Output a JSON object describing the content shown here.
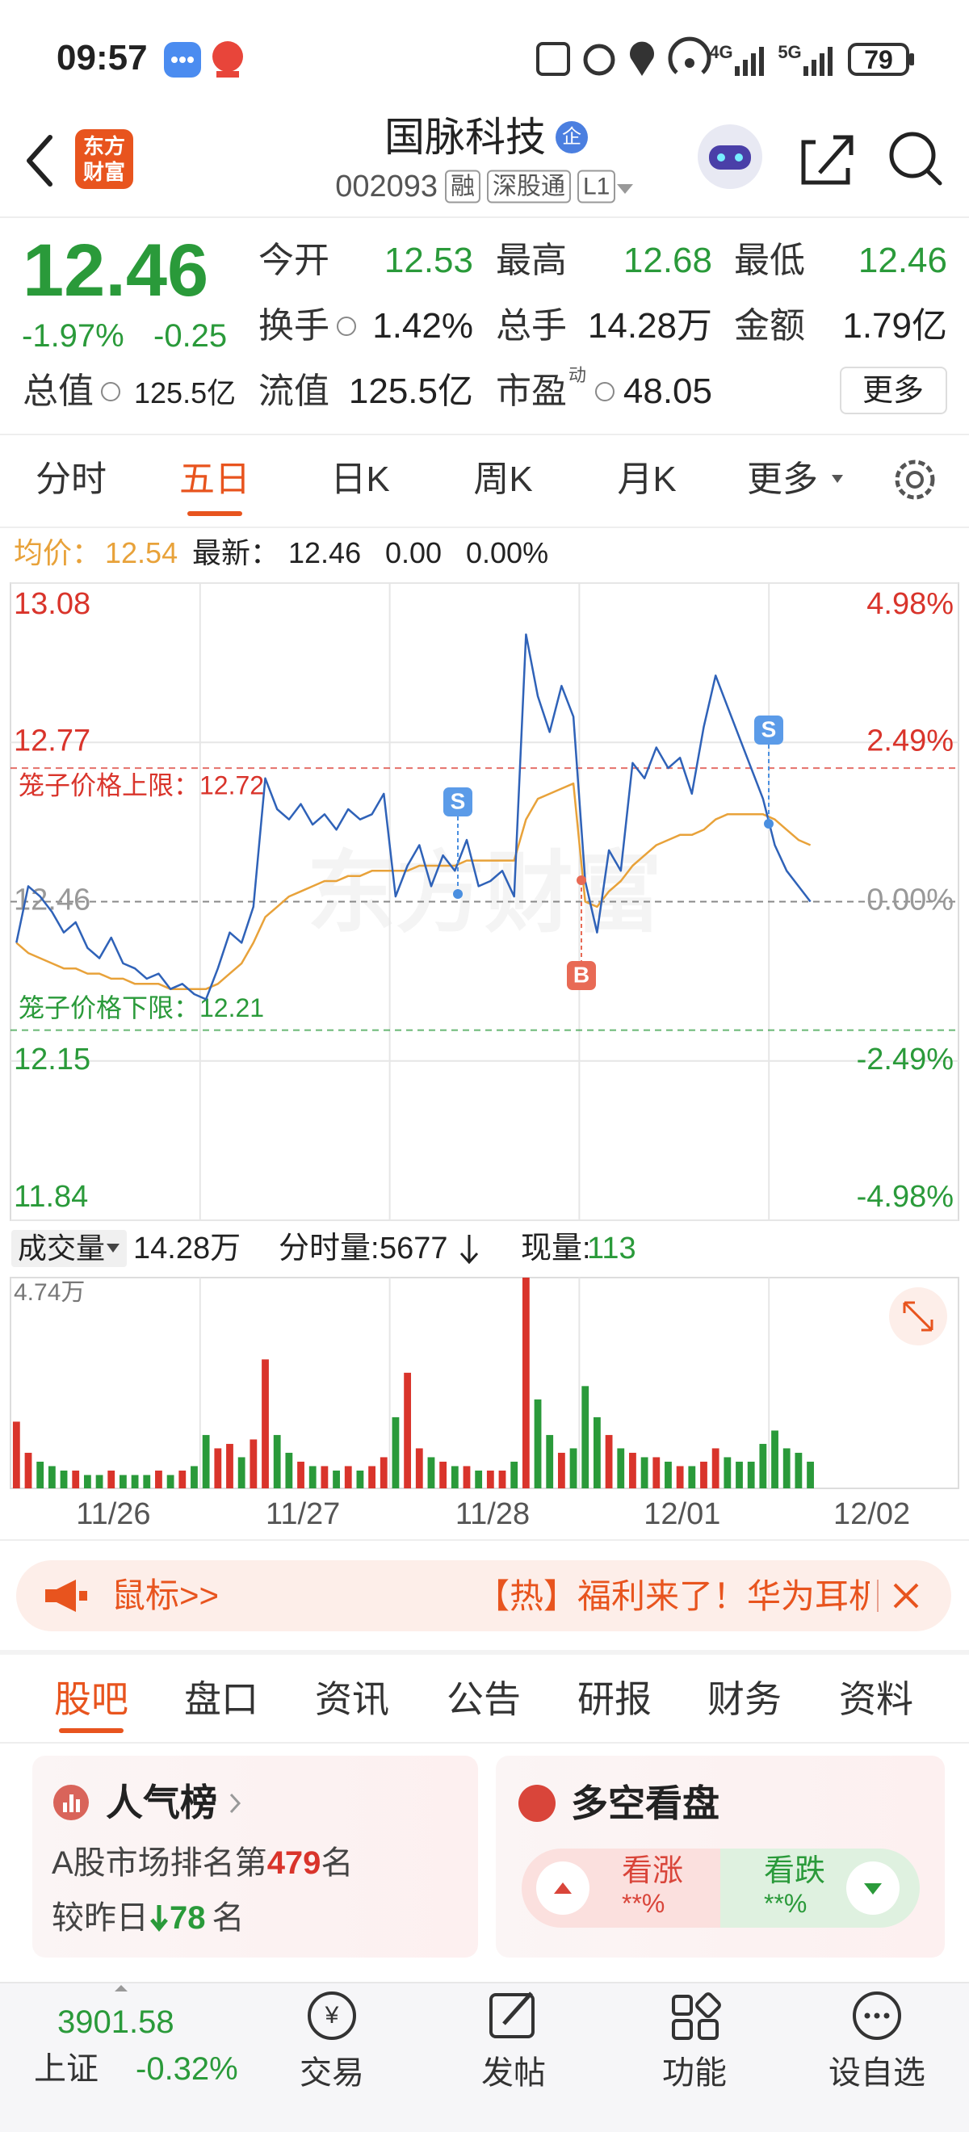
{
  "status_bar": {
    "time": "09:57",
    "battery": "79"
  },
  "header": {
    "logo": [
      "东方",
      "财富"
    ],
    "title": "国脉科技",
    "title_badge": "企",
    "code": "002093",
    "badges": [
      "融",
      "深股通",
      "L1"
    ]
  },
  "quote": {
    "price": "12.46",
    "change_pct": "-1.97%",
    "change": "-0.25",
    "total_value": {
      "label": "总值",
      "value": "125.5亿",
      "info_icon": true
    },
    "fields": [
      {
        "label": "今开",
        "value": "12.53",
        "color": "#2a9a3a"
      },
      {
        "label": "最高",
        "value": "12.68",
        "color": "#2a9a3a"
      },
      {
        "label": "最低",
        "value": "12.46",
        "color": "#2a9a3a"
      },
      {
        "label": "换手",
        "value": "1.42%",
        "info_icon": true
      },
      {
        "label": "总手",
        "value": "14.28万"
      },
      {
        "label": "金额",
        "value": "1.79亿"
      },
      {
        "label": "流值",
        "value": "125.5亿"
      },
      {
        "label": "市盈",
        "note": "动",
        "value": "48.05",
        "info_icon": true
      }
    ],
    "more": "更多"
  },
  "tabs": {
    "items": [
      "分时",
      "五日",
      "日K",
      "周K",
      "月K",
      "更多"
    ],
    "active": 1
  },
  "chart_info": {
    "avg_label": "均价：",
    "avg": "12.54",
    "latest_label": "最新：",
    "latest": "12.46",
    "change": "0.00",
    "change_pct": "0.00%"
  },
  "trade_marks": [
    "S",
    "B",
    "S"
  ],
  "chart_data": {
    "type": "line",
    "watermark": "东方财富",
    "x_labels": [
      "11/26",
      "11/27",
      "11/28",
      "12/01",
      "12/02"
    ],
    "ylim": [
      11.84,
      13.08
    ],
    "yticks": [
      13.08,
      12.77,
      12.46,
      12.15,
      11.84
    ],
    "y2lim": [
      -4.98,
      4.98
    ],
    "y2ticks": [
      {
        "value": 4.98,
        "label": "4.98%"
      },
      {
        "value": 2.49,
        "label": "2.49%"
      },
      {
        "value": 0,
        "label": "0.00%"
      },
      {
        "value": -2.49,
        "label": "-2.49%"
      },
      {
        "value": -4.98,
        "label": "-4.98%"
      }
    ],
    "up_color": "#d9342b",
    "down_color": "#2a9a3a",
    "reference_lines": [
      {
        "label": "笼子价格上限：12.72",
        "value": 12.72,
        "color": "#d9342b"
      },
      {
        "label": "笼子价格下限：12.21",
        "value": 12.21,
        "color": "#2a9a3a"
      }
    ],
    "series": [
      {
        "color": "#2f62b8",
        "values": [
          [
            12.38,
            12.49,
            12.47,
            12.44,
            12.4,
            12.42,
            12.37,
            12.35,
            12.39,
            12.34,
            12.33,
            12.31,
            12.32,
            12.29,
            12.3,
            12.28
          ],
          [
            12.27,
            12.33,
            12.4,
            12.38,
            12.45,
            12.7,
            12.64,
            12.62,
            12.65,
            12.61,
            12.63,
            12.6,
            12.64,
            12.62,
            12.63,
            12.67
          ],
          [
            12.47,
            12.53,
            12.57,
            12.49,
            12.55,
            12.52,
            12.58,
            12.49,
            12.5,
            12.52,
            12.47,
            12.98,
            12.86,
            12.79,
            12.88,
            12.82
          ],
          [
            12.5,
            12.4,
            12.56,
            12.52,
            12.73,
            12.7,
            12.76,
            12.72,
            12.74,
            12.67,
            12.8,
            12.9,
            12.84,
            12.78,
            12.72,
            12.66
          ],
          [
            12.57,
            12.52,
            12.49,
            12.46
          ]
        ]
      },
      {
        "color": "#e8a23a",
        "values": [
          [
            12.38,
            12.36,
            12.35,
            12.34,
            12.33,
            12.33,
            12.32,
            12.32,
            12.31,
            12.31,
            12.3,
            12.3,
            12.3,
            12.29,
            12.29,
            12.29
          ],
          [
            12.29,
            12.3,
            12.32,
            12.34,
            12.38,
            12.43,
            12.45,
            12.47,
            12.48,
            12.49,
            12.5,
            12.5,
            12.51,
            12.51,
            12.52,
            12.52
          ],
          [
            12.52,
            12.52,
            12.53,
            12.53,
            12.53,
            12.53,
            12.54,
            12.54,
            12.54,
            12.54,
            12.54,
            12.62,
            12.66,
            12.67,
            12.68,
            12.69
          ],
          [
            12.46,
            12.45,
            12.48,
            12.5,
            12.53,
            12.55,
            12.57,
            12.58,
            12.59,
            12.59,
            12.6,
            12.62,
            12.63,
            12.63,
            12.63,
            12.63
          ],
          [
            12.62,
            12.6,
            12.58,
            12.57
          ]
        ]
      }
    ],
    "volume": {
      "ylim": [
        0,
        4.74
      ],
      "yticks": [
        {
          "value": 4.74,
          "label": "4.74万"
        }
      ],
      "values": [
        [
          1.5,
          0.8,
          0.6,
          0.5,
          0.4,
          0.4,
          0.3,
          0.3,
          0.4,
          0.3,
          0.3,
          0.3,
          0.4,
          0.3,
          0.4,
          0.5
        ],
        [
          1.2,
          0.9,
          1.0,
          0.7,
          1.1,
          2.9,
          1.2,
          0.8,
          0.6,
          0.5,
          0.5,
          0.4,
          0.5,
          0.4,
          0.5,
          0.7
        ],
        [
          1.6,
          2.6,
          0.9,
          0.7,
          0.6,
          0.5,
          0.5,
          0.4,
          0.4,
          0.4,
          0.6,
          4.74,
          2.0,
          1.2,
          0.8,
          0.9
        ],
        [
          2.3,
          1.6,
          1.2,
          0.9,
          0.8,
          0.7,
          0.7,
          0.6,
          0.5,
          0.5,
          0.6,
          0.9,
          0.7,
          0.6,
          0.6,
          1.0
        ],
        [
          1.3,
          0.9,
          0.8,
          0.6
        ]
      ]
    }
  },
  "volume_info": {
    "label": "成交量",
    "total": "14.28万",
    "minute_label": "分时量:",
    "minute": "5677",
    "now_label": "现量:",
    "now": "113"
  },
  "banner": {
    "left": "鼠标>>",
    "right": "【热】福利来了！华为耳机"
  },
  "bottom_tabs": {
    "items": [
      "股吧",
      "盘口",
      "资讯",
      "公告",
      "研报",
      "财务",
      "资料"
    ],
    "active": 0
  },
  "cards": [
    {
      "title": "人气榜",
      "line1_prefix": "A股市场排名第",
      "rank": "479",
      "line1_suffix": "名",
      "line2_prefix": "较昨日",
      "delta": "78",
      "line2_suffix": "名"
    },
    {
      "title": "多空看盘",
      "up": "看涨",
      "up_pct": "**%",
      "down": "看跌",
      "down_pct": "**%"
    }
  ],
  "nav": {
    "index_value": "3901.58",
    "index_name": "上证",
    "index_change": "-0.32%",
    "items": [
      "交易",
      "发帖",
      "功能",
      "设自选"
    ]
  }
}
